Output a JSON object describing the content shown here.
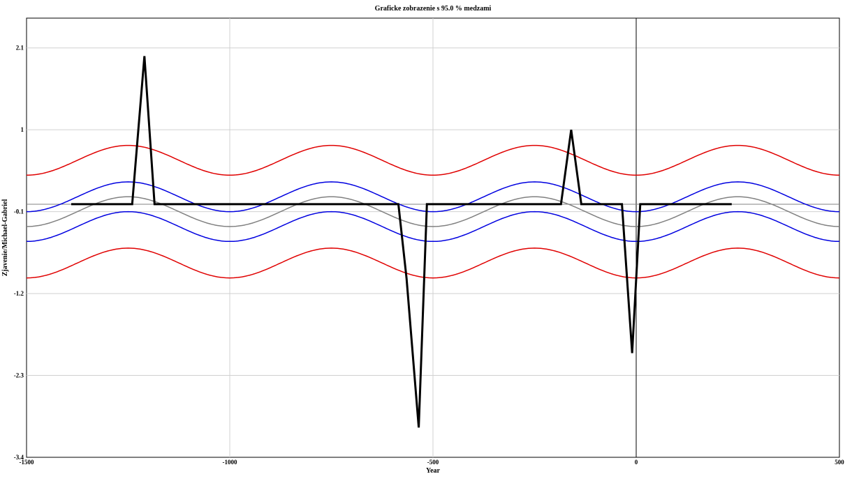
{
  "chart_data": {
    "type": "line",
    "title": "Graficke zobrazenie s 95.0 % medzami",
    "xlabel": "Year",
    "ylabel": "Zjavenie/Michael-Gabriel",
    "xlim": [
      -1500,
      500
    ],
    "ylim": [
      -3.4,
      2.5
    ],
    "x_ticks": [
      -1500,
      -1000,
      -500,
      0,
      500
    ],
    "x_tick_labels": [
      "-1500",
      "-1000",
      "-500",
      "0",
      "500"
    ],
    "y_ticks": [
      2.1,
      1,
      -0.1,
      -1.2,
      -2.3,
      -3.4
    ],
    "y_tick_labels": [
      "2.1",
      "1",
      "-0.1",
      "-1.2",
      "-2.3",
      "-3.4"
    ],
    "grid": true,
    "reference_lines": {
      "x_zero": 0,
      "y_level": 0
    },
    "bands": {
      "period": 500,
      "peak_at": -1250,
      "center_mid": -0.1,
      "center_amp": 0.2,
      "inner_half_width": 0.2,
      "outer_half_width": 0.69
    },
    "series": [
      {
        "values": [
          [
            -1390,
            0
          ],
          [
            -1240,
            0
          ],
          [
            -1210,
            1.99
          ],
          [
            -1185,
            0
          ],
          [
            -585,
            0
          ],
          [
            -565,
            -1
          ],
          [
            -535,
            -3
          ],
          [
            -515,
            0
          ],
          [
            -185,
            0
          ],
          [
            -160,
            1
          ],
          [
            -135,
            0
          ],
          [
            -35,
            0
          ],
          [
            -10,
            -2
          ],
          [
            10,
            0
          ],
          [
            235,
            0
          ]
        ]
      }
    ],
    "colors": {
      "series": "#000000",
      "center": "#808080",
      "inner_band": "#0000e0",
      "outer_band": "#e00000",
      "grid": "#d0d0d0",
      "zero_line": "#000000",
      "y_ref_line": "#808080"
    }
  }
}
